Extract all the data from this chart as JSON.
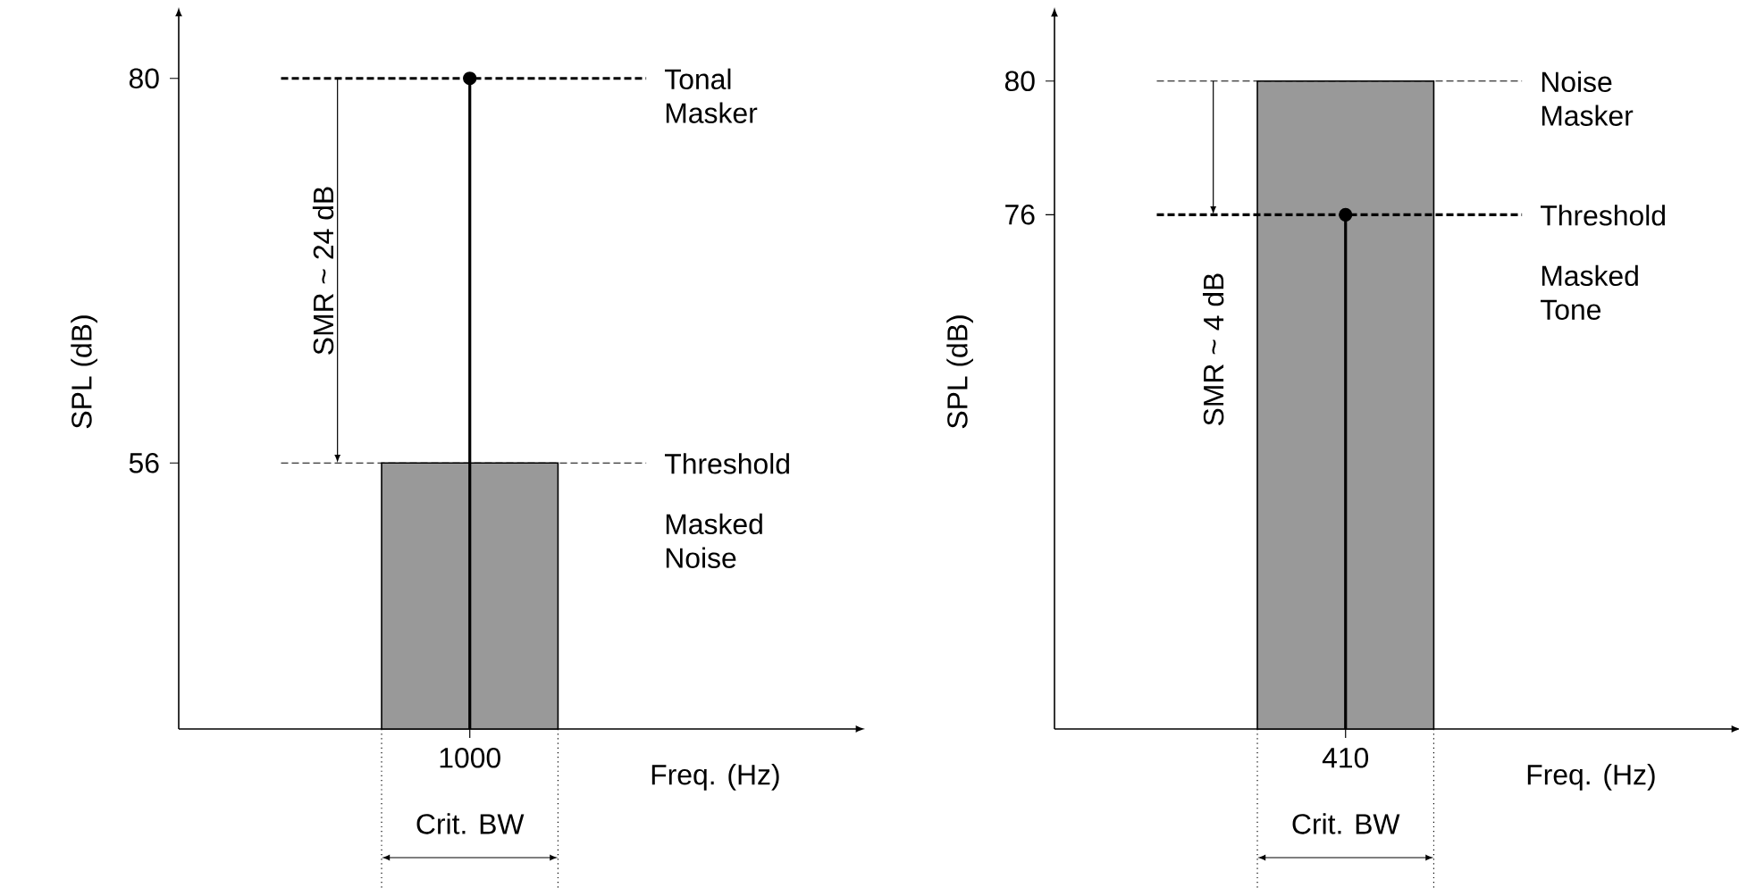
{
  "chart_data": [
    {
      "type": "bar",
      "xlabel": "Freq. (Hz)",
      "ylabel": "SPL (dB)",
      "categories": [
        "1000"
      ],
      "ylim": [
        39.4,
        84
      ],
      "yticks": [
        56,
        80
      ],
      "grid": false,
      "series": [
        {
          "color": "#999999",
          "values": [
            56
          ]
        },
        {
          "type": "lollipop",
          "color": "#000000",
          "marker": "circle",
          "values": [
            80
          ]
        }
      ],
      "ref_lines": [
        {
          "axis": "y",
          "value": 80,
          "label": "Tonal Masker",
          "line_style": "dashed",
          "color": "#000000"
        },
        {
          "axis": "y",
          "value": 56,
          "label": "Threshold",
          "line_style": "dashed",
          "color": "#000000"
        }
      ],
      "annotations": [
        "SMR ~ 24 dB",
        "Masked Noise",
        "Crit. BW"
      ]
    },
    {
      "type": "bar",
      "xlabel": "Freq. (Hz)",
      "ylabel": "SPL (dB)",
      "categories": [
        "410"
      ],
      "ylim": [
        60.6,
        82
      ],
      "yticks": [
        76,
        80
      ],
      "grid": false,
      "series": [
        {
          "color": "#999999",
          "values": [
            80
          ]
        },
        {
          "type": "lollipop",
          "color": "#000000",
          "marker": "circle",
          "values": [
            76
          ]
        }
      ],
      "ref_lines": [
        {
          "axis": "y",
          "value": 80,
          "label": "Noise Masker",
          "line_style": "dashed",
          "color": "#000000"
        },
        {
          "axis": "y",
          "value": 76,
          "label": "Threshold",
          "line_style": "dashed",
          "color": "#000000"
        }
      ],
      "annotations": [
        "SMR ~ 4 dB",
        "Masked Tone",
        "Crit. BW"
      ]
    }
  ]
}
